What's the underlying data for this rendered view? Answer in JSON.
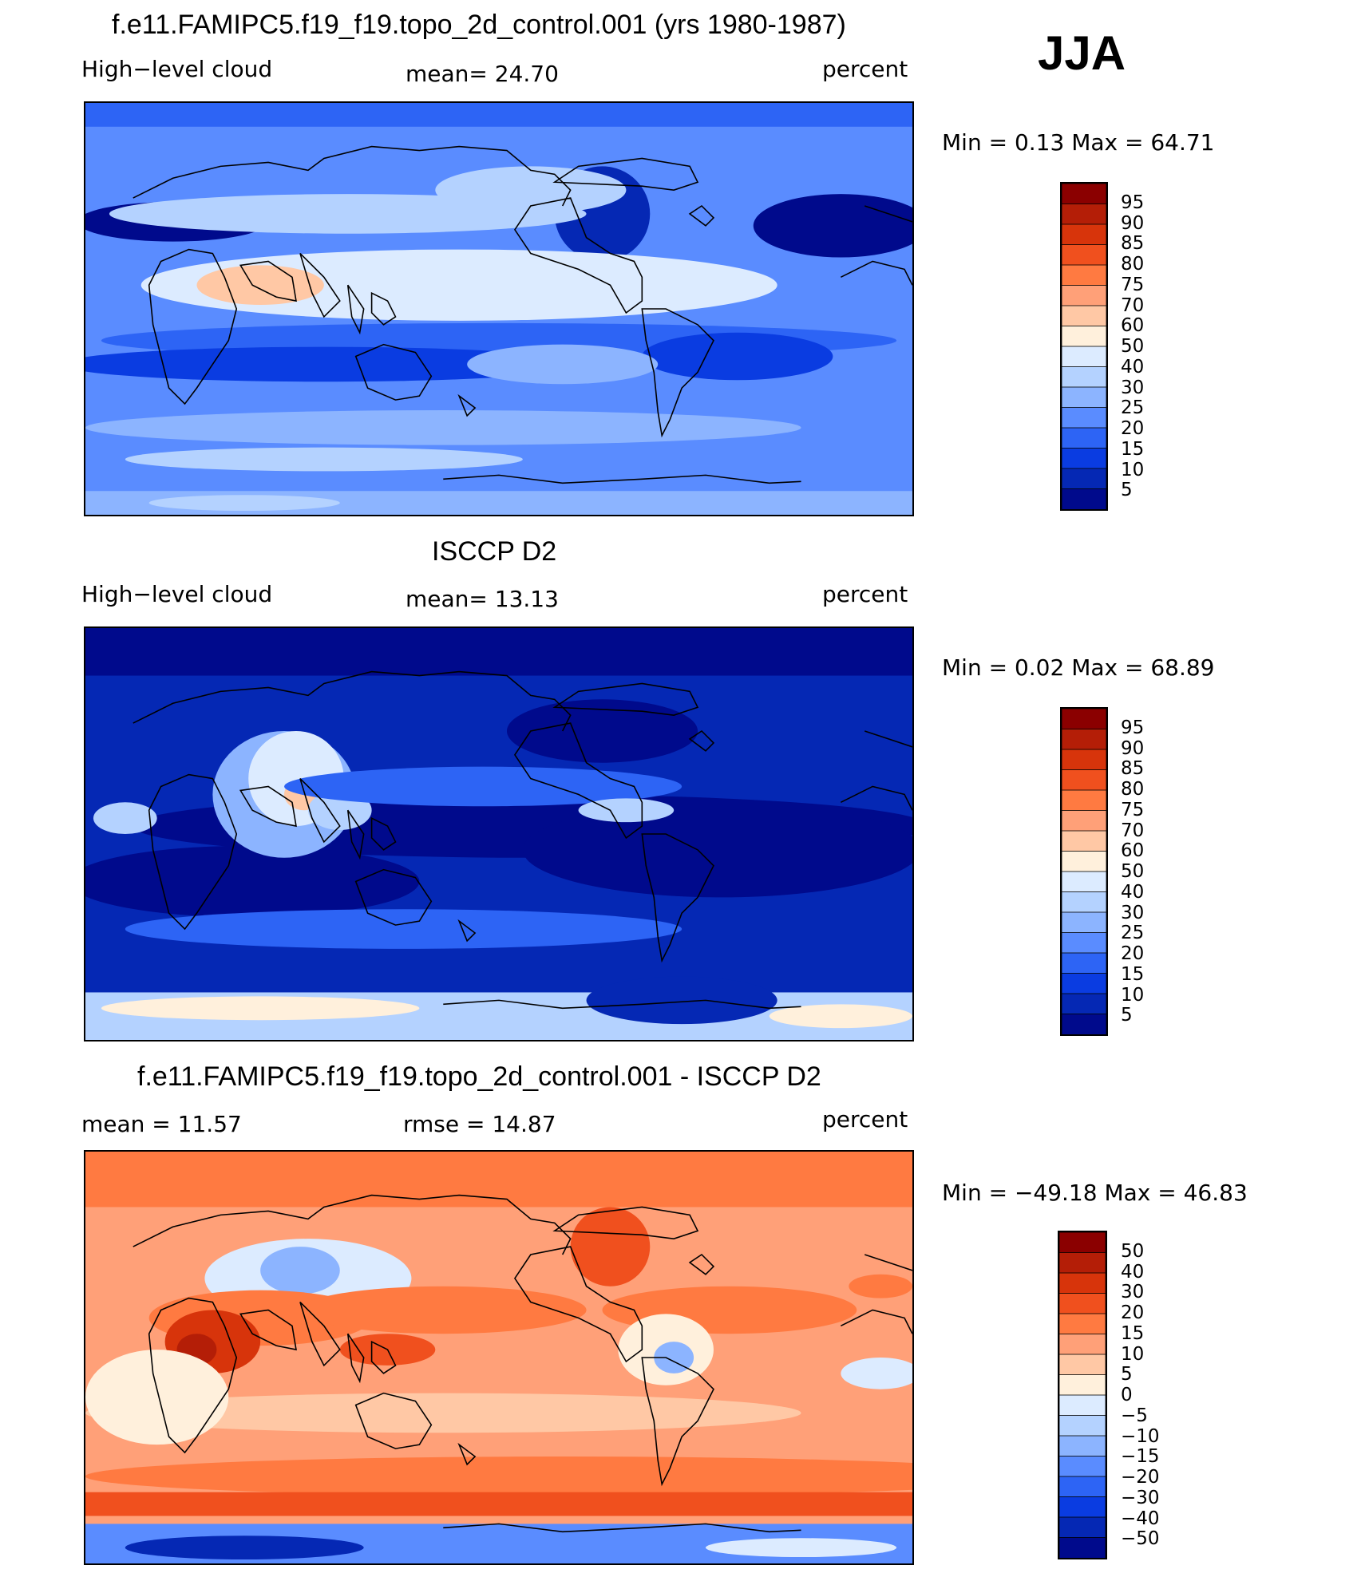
{
  "season": "JJA",
  "units": "percent",
  "panels": [
    {
      "title": "f.e11.FAMIPC5.f19_f19.topo_2d_control.001 (yrs 1980-1987)",
      "variable": "High−level cloud",
      "stat": "mean=  24.70",
      "units": "percent",
      "minmax": "Min =    0.13 Max =   64.71",
      "map": "model-high-cloud"
    },
    {
      "title": "ISCCP D2",
      "variable": "High−level cloud",
      "stat": "mean=  13.13",
      "units": "percent",
      "minmax": "Min =    0.02 Max =   68.89",
      "map": "obs-high-cloud"
    },
    {
      "title": "f.e11.FAMIPC5.f19_f19.topo_2d_control.001 - ISCCP D2",
      "stat1": "mean =   11.57",
      "stat2": "rmse =   14.87",
      "units": "percent",
      "minmax": "Min = −49.18 Max =   46.83",
      "map": "difference"
    }
  ],
  "colorbars": {
    "abs": {
      "labels": [
        "95",
        "90",
        "85",
        "80",
        "75",
        "70",
        "60",
        "50",
        "40",
        "30",
        "25",
        "20",
        "15",
        "10",
        "5"
      ],
      "colors": [
        "#8b0000",
        "#b41e07",
        "#d7340b",
        "#f0501e",
        "#ff7a41",
        "#ffa078",
        "#ffc8a5",
        "#fff0dc",
        "#dcebff",
        "#b4d2ff",
        "#8cb4ff",
        "#5a8cff",
        "#2d64f5",
        "#0a3ce1",
        "#0528b4",
        "#000a8c"
      ]
    },
    "diff": {
      "labels": [
        "50",
        "40",
        "30",
        "20",
        "15",
        "10",
        "5",
        "0",
        "−5",
        "−10",
        "−15",
        "−20",
        "−30",
        "−40",
        "−50"
      ],
      "colors": [
        "#8b0000",
        "#b41e07",
        "#d7340b",
        "#f0501e",
        "#ff7a41",
        "#ffa078",
        "#ffc8a5",
        "#fff0dc",
        "#dcebff",
        "#b4d2ff",
        "#8cb4ff",
        "#5a8cff",
        "#2d64f5",
        "#0a3ce1",
        "#0528b4",
        "#000a8c"
      ]
    }
  }
}
